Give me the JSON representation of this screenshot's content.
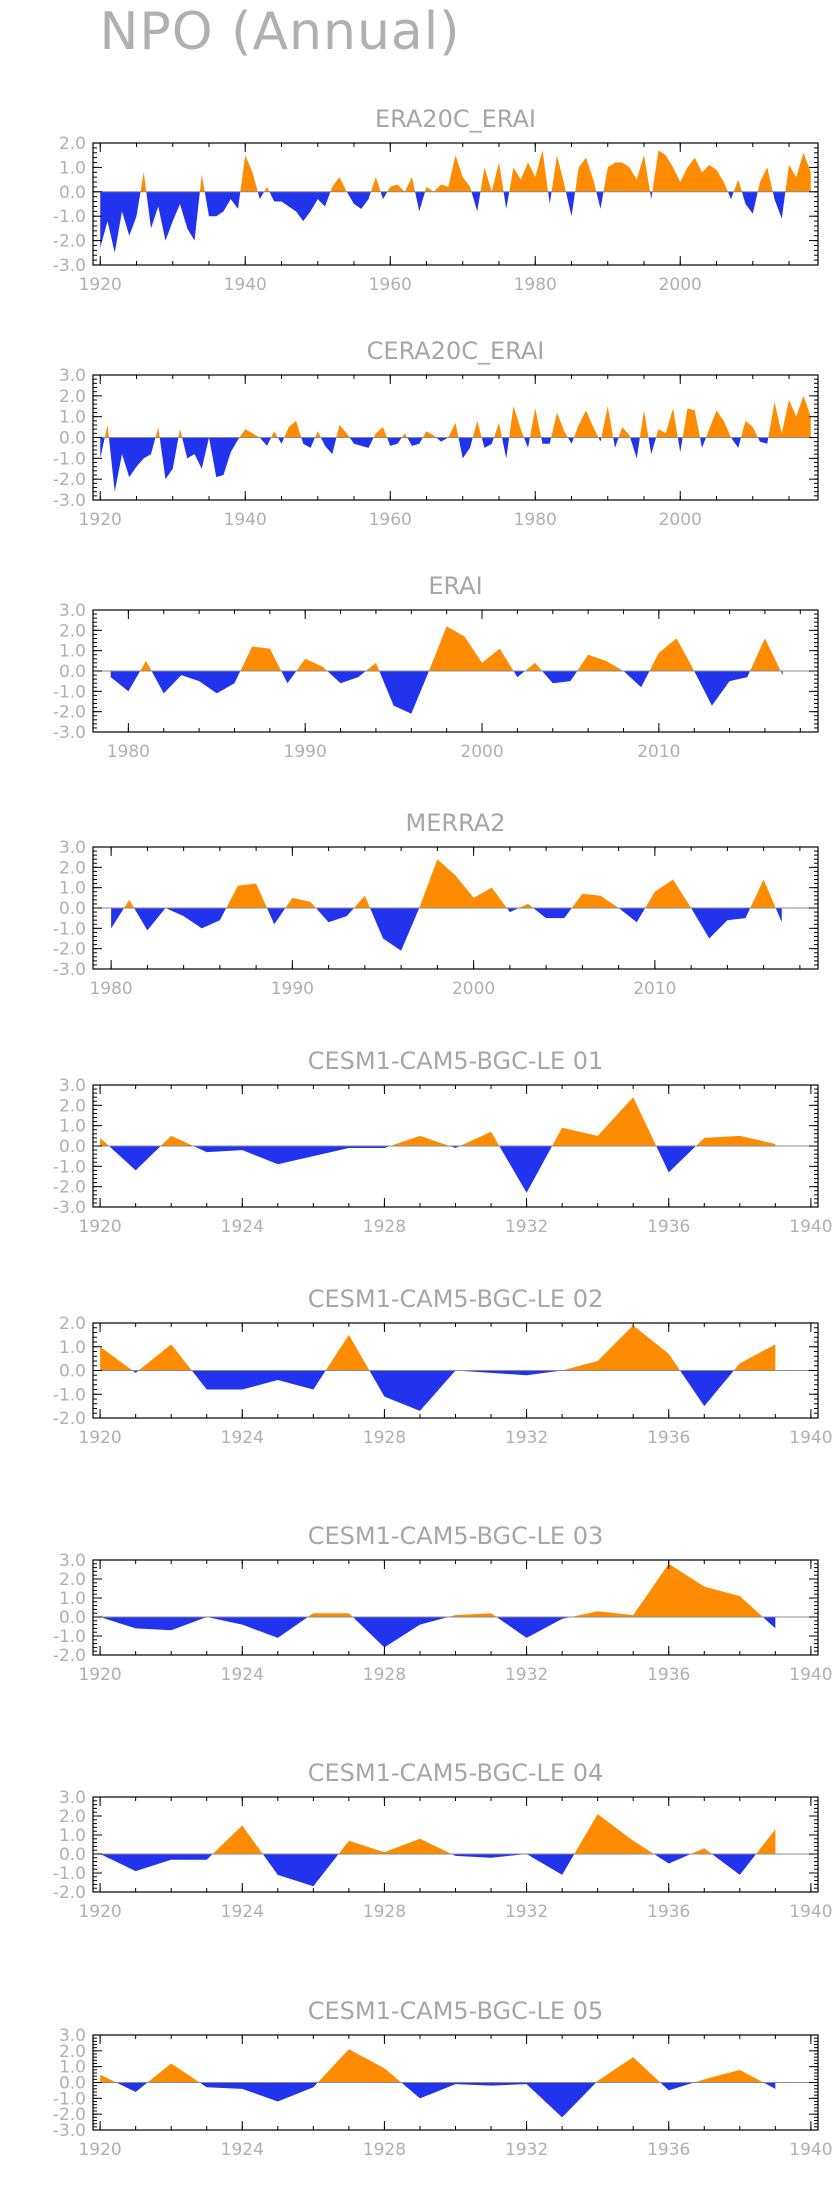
{
  "title": "NPO (Annual)",
  "colors": {
    "positive": "#ff8c00",
    "negative": "#2233ee",
    "frame": "#000000",
    "text": "#b0b0b0"
  },
  "chart_data": [
    {
      "type": "area",
      "title": "ERA20C_ERAI",
      "x_start": 1920,
      "values": [
        -2.3,
        -1.2,
        -2.5,
        -0.8,
        -1.8,
        -1.0,
        0.8,
        -1.5,
        -0.6,
        -2.0,
        -1.2,
        -0.5,
        -1.5,
        -2.0,
        0.7,
        -1.0,
        -1.0,
        -0.8,
        -0.3,
        -0.7,
        1.5,
        0.8,
        -0.3,
        0.2,
        -0.4,
        -0.4,
        -0.6,
        -0.8,
        -1.2,
        -0.8,
        -0.3,
        -0.6,
        0.2,
        0.6,
        0.0,
        -0.5,
        -0.7,
        -0.3,
        0.6,
        -0.3,
        0.2,
        0.3,
        0.0,
        0.6,
        -0.8,
        0.2,
        0.0,
        0.3,
        0.2,
        1.5,
        0.6,
        0.2,
        -0.8,
        1.0,
        0.0,
        1.2,
        -0.7,
        1.0,
        0.5,
        1.2,
        0.6,
        1.7,
        -0.5,
        1.5,
        0.3,
        -1.0,
        1.0,
        1.4,
        0.5,
        -0.7,
        1.0,
        1.2,
        1.2,
        1.0,
        0.5,
        1.5,
        -0.3,
        1.7,
        1.5,
        1.0,
        0.4,
        1.0,
        1.4,
        0.8,
        1.1,
        0.9,
        0.4,
        -0.3,
        0.5,
        -0.5,
        -0.9,
        0.4,
        1.0,
        -0.3,
        -1.1,
        1.1,
        0.6,
        1.6,
        0.8
      ],
      "xticks": [
        1920,
        1940,
        1960,
        1980,
        2000
      ],
      "xlim": [
        1919,
        2019
      ],
      "yticks": [
        -3.0,
        -2.0,
        -1.0,
        0.0,
        1.0,
        2.0
      ],
      "ylim": [
        -3,
        2
      ]
    },
    {
      "type": "area",
      "title": "CERA20C_ERAI",
      "x_start": 1920,
      "values": [
        -1.0,
        0.6,
        -2.6,
        -0.8,
        -1.9,
        -1.4,
        -1.0,
        -0.8,
        0.5,
        -2.0,
        -1.5,
        0.4,
        -1.0,
        -0.8,
        -1.5,
        0.0,
        -1.9,
        -1.8,
        -0.7,
        -0.1,
        0.4,
        0.2,
        0.0,
        -0.4,
        0.3,
        -0.3,
        0.5,
        0.8,
        -0.3,
        -0.5,
        0.3,
        -0.4,
        -0.8,
        0.6,
        0.2,
        -0.3,
        -0.4,
        -0.5,
        0.2,
        0.5,
        -0.4,
        -0.3,
        0.2,
        -0.4,
        -0.3,
        0.3,
        0.1,
        -0.2,
        0.0,
        0.7,
        -1.0,
        -0.5,
        0.8,
        -0.5,
        -0.3,
        0.7,
        -1.0,
        1.5,
        0.4,
        -0.5,
        1.4,
        -0.3,
        -0.3,
        1.2,
        0.3,
        -0.3,
        0.6,
        1.3,
        0.5,
        -0.2,
        1.5,
        -0.5,
        0.5,
        0.1,
        -1.0,
        1.3,
        -0.8,
        0.4,
        0.2,
        1.4,
        -0.7,
        1.4,
        1.3,
        -0.5,
        0.4,
        1.3,
        0.8,
        0.0,
        -0.5,
        0.8,
        0.5,
        -0.2,
        -0.3,
        1.7,
        0.2,
        1.8,
        1.0,
        2.0,
        1.0
      ],
      "xticks": [
        1920,
        1940,
        1960,
        1980,
        2000
      ],
      "xlim": [
        1919,
        2019
      ],
      "yticks": [
        -3.0,
        -2.0,
        -1.0,
        0.0,
        1.0,
        2.0,
        3.0
      ],
      "ylim": [
        -3,
        3
      ]
    },
    {
      "type": "area",
      "title": "ERAI",
      "x_start": 1979,
      "values": [
        -0.3,
        -1.0,
        0.5,
        -1.1,
        -0.2,
        -0.5,
        -1.1,
        -0.6,
        1.2,
        1.1,
        -0.6,
        0.6,
        0.2,
        -0.6,
        -0.3,
        0.4,
        -1.7,
        -2.1,
        0.0,
        2.2,
        1.7,
        0.4,
        1.1,
        -0.3,
        0.4,
        -0.6,
        -0.5,
        0.8,
        0.5,
        0.0,
        -0.8,
        0.9,
        1.6,
        0.0,
        -1.7,
        -0.5,
        -0.3,
        1.6,
        -0.2
      ],
      "xticks": [
        1980,
        1990,
        2000,
        2010
      ],
      "xlim": [
        1978,
        2019
      ],
      "yticks": [
        -3.0,
        -2.0,
        -1.0,
        0.0,
        1.0,
        2.0,
        3.0
      ],
      "ylim": [
        -3,
        3
      ]
    },
    {
      "type": "area",
      "title": "MERRA2",
      "x_start": 1980,
      "values": [
        -1.0,
        0.4,
        -1.1,
        0.0,
        -0.4,
        -1.0,
        -0.6,
        1.1,
        1.2,
        -0.8,
        0.5,
        0.3,
        -0.7,
        -0.4,
        0.6,
        -1.5,
        -2.1,
        0.0,
        2.4,
        1.6,
        0.5,
        1.0,
        -0.2,
        0.2,
        -0.5,
        -0.5,
        0.7,
        0.6,
        0.0,
        -0.7,
        0.8,
        1.4,
        0.0,
        -1.5,
        -0.6,
        -0.5,
        1.4,
        -0.7
      ],
      "xticks": [
        1980,
        1990,
        2000,
        2010
      ],
      "xlim": [
        1979,
        2019
      ],
      "yticks": [
        -3.0,
        -2.0,
        -1.0,
        0.0,
        1.0,
        2.0,
        3.0
      ],
      "ylim": [
        -3,
        3
      ]
    },
    {
      "type": "area",
      "title": "CESM1-CAM5-BGC-LE 01",
      "x_start": 1920,
      "values": [
        0.4,
        -1.2,
        0.5,
        -0.3,
        -0.2,
        -0.9,
        -0.5,
        -0.1,
        -0.1,
        0.5,
        -0.1,
        0.7,
        -2.3,
        0.9,
        0.5,
        2.4,
        -1.3,
        0.4,
        0.5,
        0.1
      ],
      "xticks": [
        1920,
        1924,
        1928,
        1932,
        1936,
        1940
      ],
      "xlim": [
        1919.8,
        1940.2
      ],
      "yticks": [
        -3.0,
        -2.0,
        -1.0,
        0.0,
        1.0,
        2.0,
        3.0
      ],
      "ylim": [
        -3,
        3
      ]
    },
    {
      "type": "area",
      "title": "CESM1-CAM5-BGC-LE 02",
      "x_start": 1920,
      "values": [
        1.0,
        -0.1,
        1.1,
        -0.8,
        -0.8,
        -0.4,
        -0.8,
        1.5,
        -1.1,
        -1.7,
        0.0,
        -0.1,
        -0.2,
        0.0,
        0.4,
        1.9,
        0.7,
        -1.5,
        0.3,
        1.1
      ],
      "xticks": [
        1920,
        1924,
        1928,
        1932,
        1936,
        1940
      ],
      "xlim": [
        1919.8,
        1940.2
      ],
      "yticks": [
        -2.0,
        -1.0,
        0.0,
        1.0,
        2.0
      ],
      "ylim": [
        -2,
        2
      ]
    },
    {
      "type": "area",
      "title": "CESM1-CAM5-BGC-LE 03",
      "x_start": 1920,
      "values": [
        0.0,
        -0.6,
        -0.7,
        0.0,
        -0.4,
        -1.1,
        0.2,
        0.2,
        -1.6,
        -0.4,
        0.1,
        0.2,
        -1.1,
        -0.1,
        0.3,
        0.1,
        2.8,
        1.6,
        1.1,
        -0.6
      ],
      "xticks": [
        1920,
        1924,
        1928,
        1932,
        1936,
        1940
      ],
      "xlim": [
        1919.8,
        1940.2
      ],
      "yticks": [
        -2.0,
        -1.0,
        0.0,
        1.0,
        2.0,
        3.0
      ],
      "ylim": [
        -2,
        3
      ]
    },
    {
      "type": "area",
      "title": "CESM1-CAM5-BGC-LE 04",
      "x_start": 1920,
      "values": [
        0.0,
        -0.9,
        -0.3,
        -0.3,
        1.5,
        -1.1,
        -1.7,
        0.7,
        0.1,
        0.8,
        -0.1,
        -0.2,
        0.0,
        -1.1,
        2.1,
        0.7,
        -0.5,
        0.3,
        -1.1,
        1.3
      ],
      "xticks": [
        1920,
        1924,
        1928,
        1932,
        1936,
        1940
      ],
      "xlim": [
        1919.8,
        1940.2
      ],
      "yticks": [
        -2.0,
        -1.0,
        0.0,
        1.0,
        2.0,
        3.0
      ],
      "ylim": [
        -2,
        3
      ]
    },
    {
      "type": "area",
      "title": "CESM1-CAM5-BGC-LE 05",
      "x_start": 1920,
      "values": [
        0.5,
        -0.6,
        1.2,
        -0.3,
        -0.4,
        -1.2,
        -0.3,
        2.1,
        0.9,
        -1.0,
        -0.1,
        -0.2,
        -0.1,
        -2.2,
        0.1,
        1.6,
        -0.5,
        0.2,
        0.8,
        -0.4
      ],
      "xticks": [
        1920,
        1924,
        1928,
        1932,
        1936,
        1940
      ],
      "xlim": [
        1919.8,
        1940.2
      ],
      "yticks": [
        -3.0,
        -2.0,
        -1.0,
        0.0,
        1.0,
        2.0,
        3.0
      ],
      "ylim": [
        -3,
        3
      ]
    }
  ]
}
